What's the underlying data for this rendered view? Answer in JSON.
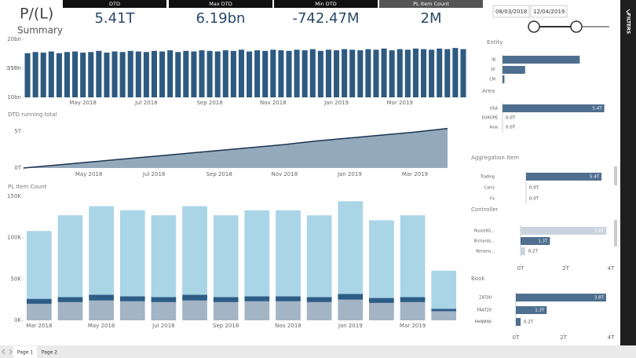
{
  "header": {
    "title": "P/(L)",
    "subtitle": "Summary"
  },
  "kpis": [
    {
      "label": "DTD",
      "value": "5.41T"
    },
    {
      "label": "Max DTD",
      "value": "6.19bn"
    },
    {
      "label": "Min DTD",
      "value": "-742.47M"
    },
    {
      "label": "PL Item Count",
      "value": "2M"
    }
  ],
  "date_range": {
    "start": "08/03/2018",
    "end": "12/04/2019"
  },
  "filters_label": "FILTERS",
  "pages": [
    "Page 1",
    "Page 2"
  ],
  "chart_data": [
    {
      "type": "bar",
      "y_label": "DTD",
      "color": "#2e5a82",
      "categories": [
        null,
        null,
        null,
        null,
        null,
        null,
        null,
        "May 2018",
        null,
        null,
        null,
        null,
        null,
        null,
        null,
        "Jul 2018",
        null,
        null,
        null,
        null,
        null,
        null,
        null,
        "Sep 2018",
        null,
        null,
        null,
        null,
        null,
        null,
        null,
        "Nov 2018",
        null,
        null,
        null,
        null,
        null,
        null,
        null,
        "Jan 2019",
        null,
        null,
        null,
        null,
        null,
        null,
        null,
        "Mar 2019",
        null,
        null,
        null,
        null,
        null,
        null,
        null,
        null
      ],
      "values": [
        17.6,
        17.8,
        17.7,
        17.9,
        17.6,
        17.8,
        17.9,
        17.7,
        17.8,
        18.0,
        17.7,
        17.9,
        17.8,
        18.0,
        17.9,
        17.8,
        18.0,
        17.9,
        18.1,
        17.8,
        18.0,
        17.9,
        18.1,
        18.0,
        17.9,
        18.1,
        18.0,
        18.2,
        17.9,
        18.1,
        18.0,
        18.2,
        18.1,
        18.0,
        18.2,
        18.1,
        18.3,
        18.0,
        18.2,
        18.1,
        18.3,
        18.2,
        18.1,
        18.3,
        18.2,
        18.4,
        18.1,
        18.3,
        18.2,
        18.4,
        18.3,
        18.2,
        18.4,
        18.3,
        18.5,
        18.3
      ],
      "ylim": [
        10,
        20
      ],
      "yticks": [
        {
          "value": 10,
          "label": "10bn"
        },
        {
          "value": 15,
          "label": "15bn"
        },
        {
          "value": 20,
          "label": "20bn"
        }
      ]
    },
    {
      "type": "area",
      "title": "DTD running total",
      "color": "#95a9bd",
      "line_color": "#1c3350",
      "categories": [
        null,
        null,
        "May 2018",
        null,
        "Jul 2018",
        null,
        "Sep 2018",
        null,
        "Nov 2018",
        null,
        "Jan 2019",
        null,
        "Mar 2019",
        null
      ],
      "values": [
        0.0,
        0.4,
        0.8,
        1.2,
        1.6,
        2.0,
        2.4,
        2.8,
        3.2,
        3.7,
        4.1,
        4.5,
        4.9,
        5.4
      ],
      "ylim": [
        0,
        6
      ],
      "yticks": [
        {
          "value": 0,
          "label": "0T"
        },
        {
          "value": 5,
          "label": "5T"
        }
      ]
    },
    {
      "type": "stacked_bar",
      "title": "PL Item Count",
      "categories": [
        "Mar 2018",
        null,
        "May 2018",
        null,
        "Jul 2018",
        null,
        "Sep 2018",
        null,
        "Nov 2018",
        null,
        "Jan 2019",
        null,
        "Mar 2019",
        null
      ],
      "series": [
        {
          "color": "#a3b4c5",
          "values": [
            20,
            22,
            24,
            23,
            22,
            24,
            22,
            23,
            23,
            22,
            25,
            21,
            22,
            11
          ]
        },
        {
          "color": "#2d5d86",
          "values": [
            6,
            6,
            7,
            6,
            6,
            7,
            6,
            6,
            6,
            6,
            7,
            6,
            6,
            3
          ]
        },
        {
          "color": "#a9d5e7",
          "values": [
            82,
            99,
            107,
            104,
            99,
            107,
            99,
            104,
            104,
            99,
            112,
            94,
            99,
            46
          ]
        }
      ],
      "ylim": [
        0,
        150
      ],
      "yticks": [
        {
          "value": 0,
          "label": "0K"
        },
        {
          "value": 50,
          "label": "50K"
        },
        {
          "value": 100,
          "label": "100K"
        },
        {
          "value": 150,
          "label": "150K"
        }
      ]
    },
    {
      "type": "hbar",
      "title": "Entity",
      "color": "#4e6f8f",
      "categories": [
        "IB",
        "FF",
        "CM"
      ],
      "values": [
        4.1,
        1.2,
        0.1
      ]
    },
    {
      "type": "hbar",
      "title": "Area",
      "color": "#4e6f8f",
      "categories": [
        "USA",
        "EUROPE",
        "Asia"
      ],
      "values": [
        5.4,
        0.0,
        0.0
      ],
      "value_labels": [
        "5.4T",
        "0.0T",
        "0.0T"
      ]
    },
    {
      "type": "hbar",
      "title": "Aggregation Item",
      "color": "#4e6f8f",
      "categories": [
        "Trading",
        "Carry",
        "Fx"
      ],
      "values": [
        5.4,
        0.0,
        0.0
      ],
      "value_labels": [
        "5.4T",
        "0.0T",
        "0.0T"
      ]
    },
    {
      "type": "hbar",
      "title": "Controller",
      "colors": [
        "#c9d4de",
        "#4e6f8f",
        "#c9d4de"
      ],
      "categories": [
        "RussellG...",
        "Richards...",
        "Yemeno..."
      ],
      "values": [
        3.8,
        1.3,
        0.2
      ],
      "value_labels": [
        "3.8T",
        "1.3T",
        "0.2T"
      ],
      "xlim": [
        0,
        4
      ],
      "xticks": [
        {
          "value": 0,
          "label": "0T"
        },
        {
          "value": 2,
          "label": "2T"
        },
        {
          "value": 4,
          "label": "4T"
        }
      ]
    },
    {
      "type": "hbar",
      "title": "Book",
      "color": "#4e6f8f",
      "categories": [
        "ZAT00",
        "FRAT20",
        "PHNM90"
      ],
      "values": [
        3.8,
        1.3,
        0.2
      ],
      "value_labels": [
        "3.8T",
        "1.3T",
        "0.2T"
      ],
      "xlim": [
        0,
        4
      ],
      "xticks": [
        {
          "value": 0,
          "label": "0T"
        },
        {
          "value": 2,
          "label": "2T"
        },
        {
          "value": 4,
          "label": "4T"
        }
      ]
    }
  ]
}
